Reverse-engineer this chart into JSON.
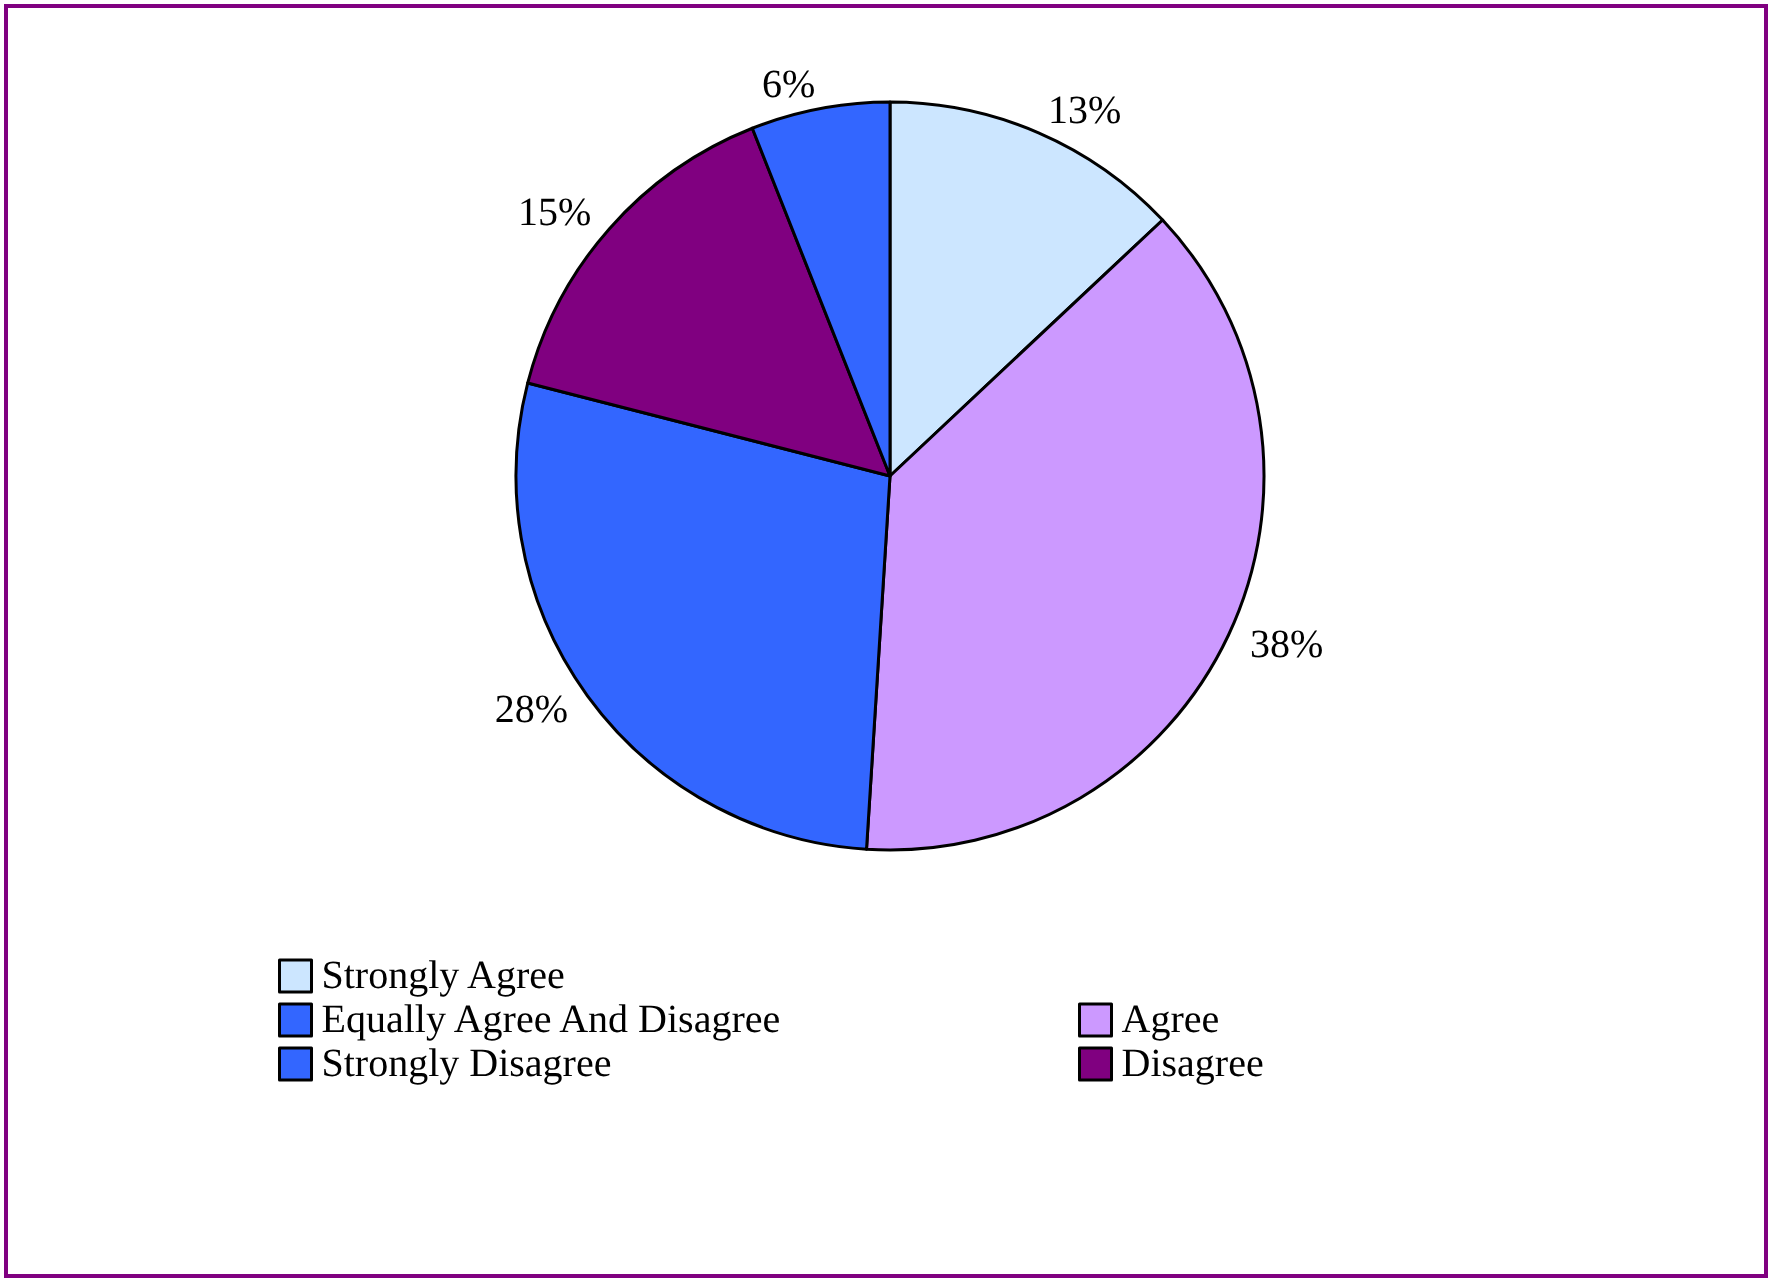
{
  "chart_data": {
    "type": "pie",
    "categories": [
      "Strongly Agree",
      "Agree",
      "Equally Agree And Disagree",
      "Disagree",
      "Strongly Disagree"
    ],
    "values": [
      13,
      38,
      28,
      15,
      6
    ],
    "value_labels": [
      "13%",
      "38%",
      "28%",
      "15%",
      "6%"
    ],
    "colors": [
      "#cce6ff",
      "#cc99ff",
      "#3366ff",
      "#800080",
      "#3366ff"
    ],
    "legend": "bottom"
  }
}
